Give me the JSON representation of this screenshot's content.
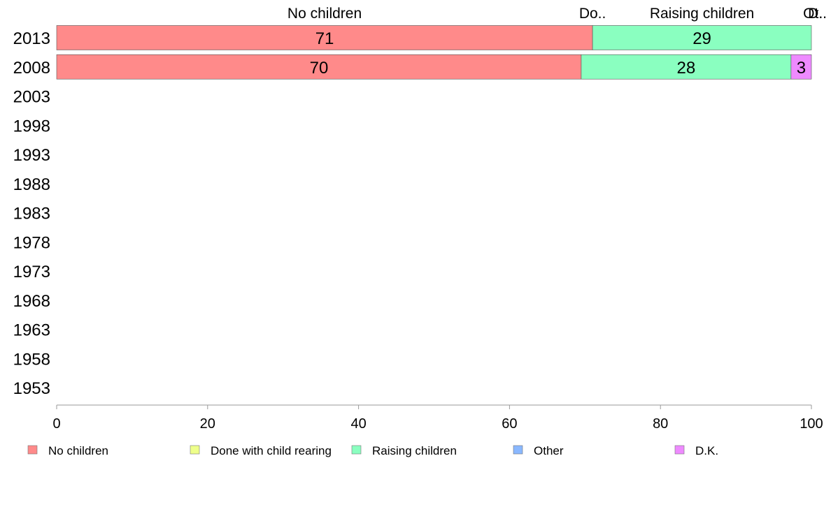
{
  "chart_data": {
    "type": "bar",
    "orientation": "horizontal",
    "stacked": true,
    "title": "",
    "xlabel": "",
    "ylabel": "",
    "xlim": [
      0,
      100
    ],
    "x_ticks": [
      "0",
      "20",
      "40",
      "60",
      "80",
      "100"
    ],
    "categories": [
      "2013",
      "2008",
      "2003",
      "1998",
      "1993",
      "1988",
      "1983",
      "1978",
      "1973",
      "1968",
      "1963",
      "1958",
      "1953"
    ],
    "series": [
      {
        "name": "No children",
        "color": "#ff8a8a",
        "values": [
          71,
          69.5,
          null,
          null,
          null,
          null,
          null,
          null,
          null,
          null,
          null,
          null,
          null
        ],
        "labels": [
          "71",
          "70",
          "",
          "",
          "",
          "",
          "",
          "",
          "",
          "",
          "",
          "",
          ""
        ]
      },
      {
        "name": "Done with child rearing",
        "color": "#eeff8a",
        "values": [
          0,
          0,
          null,
          null,
          null,
          null,
          null,
          null,
          null,
          null,
          null,
          null,
          null
        ],
        "labels": [
          "",
          "",
          "",
          "",
          "",
          "",
          "",
          "",
          "",
          "",
          "",
          "",
          ""
        ]
      },
      {
        "name": "Raising children",
        "color": "#8affc0",
        "values": [
          29,
          27.8,
          null,
          null,
          null,
          null,
          null,
          null,
          null,
          null,
          null,
          null,
          null
        ],
        "labels": [
          "29",
          "28",
          "",
          "",
          "",
          "",
          "",
          "",
          "",
          "",
          "",
          "",
          ""
        ]
      },
      {
        "name": "Other",
        "color": "#8ab8ff",
        "values": [
          0,
          0,
          null,
          null,
          null,
          null,
          null,
          null,
          null,
          null,
          null,
          null,
          null
        ],
        "labels": [
          "",
          "",
          "",
          "",
          "",
          "",
          "",
          "",
          "",
          "",
          "",
          "",
          ""
        ]
      },
      {
        "name": "D.K.",
        "color": "#ee8aff",
        "values": [
          0,
          2.7,
          null,
          null,
          null,
          null,
          null,
          null,
          null,
          null,
          null,
          null,
          null
        ],
        "labels": [
          "",
          "3",
          "",
          "",
          "",
          "",
          "",
          "",
          "",
          "",
          "",
          "",
          ""
        ]
      }
    ],
    "top_labels": [
      {
        "text": "No children",
        "x": 35.5
      },
      {
        "text": "Do..",
        "x": 71
      },
      {
        "text": "Raising children",
        "x": 85.5
      },
      {
        "text": "Ot..",
        "x": 100
      },
      {
        "text": "D..",
        "x": 100
      }
    ],
    "legend": {
      "placement": "bottom",
      "items": [
        "No children",
        "Done with child rearing",
        "Raising children",
        "Other",
        "D.K."
      ]
    },
    "grid": false
  }
}
